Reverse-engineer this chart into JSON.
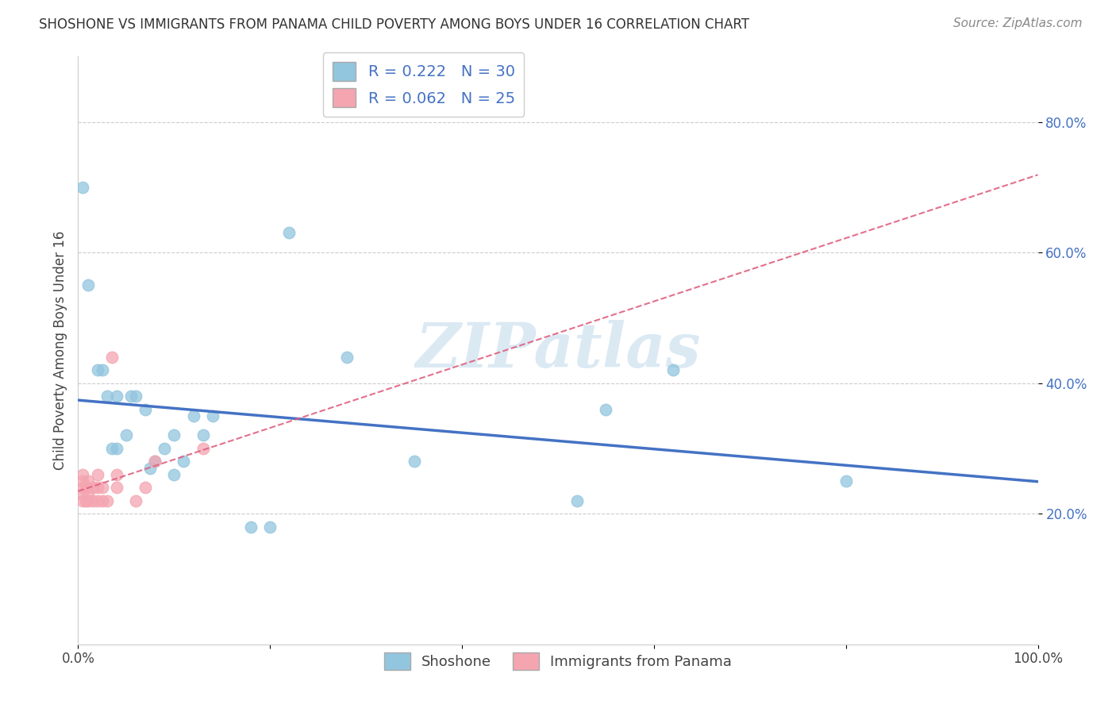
{
  "title": "SHOSHONE VS IMMIGRANTS FROM PANAMA CHILD POVERTY AMONG BOYS UNDER 16 CORRELATION CHART",
  "source": "Source: ZipAtlas.com",
  "ylabel": "Child Poverty Among Boys Under 16",
  "xlim": [
    0,
    1.0
  ],
  "ylim": [
    0,
    0.9
  ],
  "R_shoshone": 0.222,
  "N_shoshone": 30,
  "R_panama": 0.062,
  "N_panama": 25,
  "shoshone_color": "#92C5DE",
  "panama_color": "#F4A5B0",
  "shoshone_line_color": "#4472C4",
  "panama_line_color": "#E06080",
  "grid_color": "#CCCCCC",
  "background_color": "#FFFFFF",
  "watermark": "ZIPatlas",
  "shoshone_x": [
    0.005,
    0.01,
    0.02,
    0.025,
    0.03,
    0.035,
    0.04,
    0.04,
    0.05,
    0.055,
    0.06,
    0.07,
    0.075,
    0.08,
    0.09,
    0.1,
    0.1,
    0.11,
    0.12,
    0.13,
    0.14,
    0.18,
    0.2,
    0.22,
    0.28,
    0.35,
    0.52,
    0.55,
    0.62,
    0.8
  ],
  "shoshone_y": [
    0.7,
    0.55,
    0.42,
    0.42,
    0.38,
    0.3,
    0.3,
    0.38,
    0.32,
    0.38,
    0.38,
    0.36,
    0.27,
    0.28,
    0.3,
    0.26,
    0.32,
    0.28,
    0.35,
    0.32,
    0.35,
    0.18,
    0.18,
    0.63,
    0.44,
    0.28,
    0.22,
    0.36,
    0.42,
    0.25
  ],
  "panama_x": [
    0.005,
    0.005,
    0.005,
    0.005,
    0.005,
    0.008,
    0.008,
    0.01,
    0.01,
    0.01,
    0.015,
    0.015,
    0.02,
    0.02,
    0.02,
    0.025,
    0.025,
    0.03,
    0.035,
    0.04,
    0.04,
    0.06,
    0.07,
    0.08,
    0.13
  ],
  "panama_y": [
    0.22,
    0.23,
    0.24,
    0.25,
    0.26,
    0.22,
    0.24,
    0.22,
    0.23,
    0.25,
    0.22,
    0.24,
    0.22,
    0.24,
    0.26,
    0.22,
    0.24,
    0.22,
    0.44,
    0.24,
    0.26,
    0.22,
    0.24,
    0.28,
    0.3
  ]
}
